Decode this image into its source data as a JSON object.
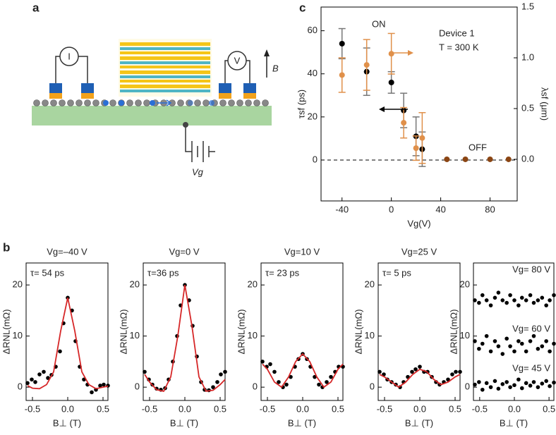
{
  "panels": {
    "a": "a",
    "b": "b",
    "c": "c"
  },
  "diagram": {
    "current_source": "I",
    "voltmeter": "V",
    "field": "B",
    "gate": "Vg"
  },
  "chart_data": [
    {
      "type": "scatter",
      "xlabel": "Vg(V)",
      "ylabel": "τsf (ps)",
      "y2label": "λsf (μm)",
      "xlim": [
        -57,
        102
      ],
      "ylim": [
        -19,
        71
      ],
      "y2lim": [
        -0.41,
        1.5
      ],
      "xticks": [
        -40,
        0,
        40,
        80
      ],
      "yticks": [
        0,
        20,
        40,
        60
      ],
      "y2ticks": [
        {
          "value": 0,
          "label": "0.0"
        },
        {
          "value": 0.5,
          "label": "0.5"
        },
        {
          "value": 1,
          "label": "1.0"
        },
        {
          "value": 1.5,
          "label": "1.5"
        }
      ],
      "zero_line": true,
      "annotations": [
        "ON",
        "OFF",
        "Device 1",
        "T = 300 K"
      ],
      "series": [
        {
          "color": "#000000",
          "x": [
            -40,
            -20,
            0,
            10,
            20,
            25
          ],
          "values": [
            54,
            41,
            36,
            23,
            11,
            5
          ],
          "errors": [
            7,
            11,
            5,
            8,
            9,
            8
          ]
        },
        {
          "color": "#e0904a",
          "axis": "y2",
          "x": [
            -40,
            -20,
            0,
            10,
            20,
            25
          ],
          "values": [
            0.83,
            0.93,
            1.04,
            0.36,
            0.11,
            0.21
          ],
          "errors": [
            0.17,
            0.25,
            0.2,
            0.15,
            0.12,
            0.25
          ]
        },
        {
          "color": "#8b4513",
          "axis": "y2",
          "x": [
            45,
            60,
            80,
            95
          ],
          "values": [
            0,
            0,
            0,
            0
          ]
        }
      ]
    },
    {
      "type": "line",
      "title": "Vg=–40 V",
      "note": "τ= 54 ps",
      "xlabel": "B⊥ (T)",
      "ylabel": "ΔRNL(mΩ)",
      "xlim": [
        -0.59,
        0.57
      ],
      "ylim": [
        -2.6,
        24.3
      ],
      "xticks": [
        -0.5,
        {
          "value": 0,
          "label": "0.0"
        },
        0.5
      ],
      "yticks": [
        0,
        10,
        20
      ],
      "series": [
        {
          "style": "dots",
          "color": "#000000",
          "x": [
            -0.57,
            -0.51,
            -0.46,
            -0.4,
            -0.34,
            -0.28,
            -0.23,
            -0.17,
            -0.11,
            -0.06,
            0,
            0.06,
            0.11,
            0.17,
            0.23,
            0.28,
            0.34,
            0.4,
            0.46,
            0.51,
            0.57
          ],
          "values": [
            0.8,
            1.5,
            1,
            2.5,
            3,
            1.8,
            2.4,
            4,
            7,
            12.5,
            17.5,
            15,
            9,
            4,
            1.5,
            0.5,
            -1,
            -0.5,
            0.3,
            0.5,
            0.3
          ]
        },
        {
          "style": "line",
          "color": "#d62728",
          "x": [
            -0.57,
            -0.5,
            -0.4,
            -0.3,
            -0.2,
            -0.1,
            0,
            0.1,
            0.2,
            0.3,
            0.4,
            0.5,
            0.57
          ],
          "values": [
            0.3,
            -0.2,
            -0.3,
            0.5,
            3,
            11,
            17.5,
            11,
            3,
            0.5,
            -0.3,
            0,
            0.2
          ]
        }
      ]
    },
    {
      "type": "line",
      "title": "Vg=0 V",
      "note": "τ=36 ps",
      "xlabel": "B⊥ (T)",
      "ylabel": "ΔRNL(mΩ)",
      "xlim": [
        -0.59,
        0.57
      ],
      "ylim": [
        -2.6,
        24.3
      ],
      "xticks": [
        -0.5,
        {
          "value": 0,
          "label": "0.0"
        },
        0.5
      ],
      "yticks": [
        0,
        10,
        20
      ],
      "series": [
        {
          "style": "dots",
          "color": "#000000",
          "x": [
            -0.57,
            -0.51,
            -0.46,
            -0.4,
            -0.34,
            -0.28,
            -0.23,
            -0.17,
            -0.11,
            -0.06,
            0,
            0.06,
            0.11,
            0.17,
            0.23,
            0.28,
            0.34,
            0.4,
            0.46,
            0.51,
            0.57
          ],
          "values": [
            3,
            1.5,
            0.5,
            -0.3,
            -0.5,
            -0.2,
            1.5,
            5,
            10,
            16,
            20,
            17,
            12,
            6,
            1,
            -0.5,
            -0.6,
            0,
            1,
            2.5,
            3
          ]
        },
        {
          "style": "line",
          "color": "#d62728",
          "x": [
            -0.57,
            -0.5,
            -0.4,
            -0.3,
            -0.2,
            -0.1,
            0,
            0.1,
            0.2,
            0.3,
            0.4,
            0.5,
            0.57
          ],
          "values": [
            2.5,
            1,
            -0.5,
            -0.8,
            2,
            10,
            20,
            12,
            2,
            -0.8,
            -0.6,
            0.5,
            1.5
          ]
        }
      ]
    },
    {
      "type": "line",
      "title": "Vg=10 V",
      "note": "τ= 23 ps",
      "xlabel": "B⊥ (T)",
      "ylabel": "ΔRNL(mΩ)",
      "xlim": [
        -0.59,
        0.57
      ],
      "ylim": [
        -2.6,
        24.3
      ],
      "xticks": [
        -0.5,
        {
          "value": 0,
          "label": "0.0"
        },
        0.5
      ],
      "yticks": [
        0,
        10,
        20
      ],
      "series": [
        {
          "style": "dots",
          "color": "#000000",
          "x": [
            -0.57,
            -0.51,
            -0.46,
            -0.4,
            -0.34,
            -0.28,
            -0.23,
            -0.17,
            -0.11,
            -0.06,
            0,
            0.06,
            0.11,
            0.17,
            0.23,
            0.28,
            0.34,
            0.4,
            0.46,
            0.51,
            0.57
          ],
          "values": [
            5,
            4,
            4.5,
            3,
            1,
            0,
            0.5,
            2,
            4,
            5.5,
            6.5,
            5.5,
            4,
            2,
            0.5,
            0,
            1,
            2,
            3,
            4,
            4
          ]
        },
        {
          "style": "line",
          "color": "#d62728",
          "x": [
            -0.57,
            -0.5,
            -0.4,
            -0.3,
            -0.2,
            -0.1,
            0,
            0.1,
            0.2,
            0.3,
            0.4,
            0.5,
            0.57
          ],
          "values": [
            4.5,
            3.5,
            1,
            0,
            2,
            5,
            6.5,
            5,
            2,
            0,
            1,
            3.5,
            4.5
          ]
        }
      ]
    },
    {
      "type": "line",
      "title": "Vg=25 V",
      "note": "τ= 5 ps",
      "xlabel": "B⊥ (T)",
      "ylabel": "ΔRNL(mΩ)",
      "xlim": [
        -0.59,
        0.57
      ],
      "ylim": [
        -2.6,
        24.3
      ],
      "xticks": [
        -0.5,
        {
          "value": 0,
          "label": "0.0"
        },
        0.5
      ],
      "yticks": [
        0,
        10,
        20
      ],
      "series": [
        {
          "style": "dots",
          "color": "#000000",
          "x": [
            -0.57,
            -0.51,
            -0.46,
            -0.4,
            -0.34,
            -0.28,
            -0.23,
            -0.17,
            -0.11,
            -0.06,
            0,
            0.06,
            0.11,
            0.17,
            0.23,
            0.28,
            0.34,
            0.4,
            0.46,
            0.51,
            0.57
          ],
          "values": [
            3,
            2.5,
            1.5,
            1,
            0.5,
            0,
            1,
            2,
            3,
            3.5,
            4,
            3,
            3,
            2,
            1,
            0.5,
            1,
            1.5,
            2.5,
            3,
            3
          ]
        },
        {
          "style": "line",
          "color": "#d62728",
          "x": [
            -0.57,
            -0.5,
            -0.4,
            -0.3,
            -0.2,
            -0.1,
            0,
            0.1,
            0.2,
            0.3,
            0.4,
            0.5,
            0.57
          ],
          "values": [
            2.5,
            2,
            1,
            0,
            1,
            2.5,
            3.5,
            3,
            1.5,
            0.5,
            1,
            2,
            2.5
          ]
        }
      ]
    },
    {
      "type": "line",
      "xlabel": "B⊥ (T)",
      "ylabel": "ΔRNL(mΩ)",
      "annotations": [
        "Vg= 80 V",
        "Vg= 60 V",
        "Vg= 45 V"
      ],
      "xlim": [
        -0.59,
        0.57
      ],
      "ylim": [
        -2.6,
        24.3
      ],
      "xticks": [
        -0.5,
        {
          "value": 0,
          "label": "0.0"
        },
        0.5
      ],
      "yticks": [
        0,
        10,
        20
      ],
      "series": [
        {
          "style": "dots",
          "color": "#000000",
          "x": [
            -0.57,
            -0.51,
            -0.46,
            -0.4,
            -0.34,
            -0.28,
            -0.23,
            -0.17,
            -0.11,
            -0.06,
            0,
            0.06,
            0.11,
            0.17,
            0.23,
            0.28,
            0.34,
            0.4,
            0.46,
            0.51,
            0.57
          ],
          "values": [
            17,
            16.5,
            18,
            17,
            16,
            17.5,
            18.5,
            17,
            16.5,
            18,
            17,
            16,
            17.5,
            17,
            18,
            16.5,
            17,
            17.5,
            16,
            17,
            18
          ]
        },
        {
          "style": "dots",
          "color": "#000000",
          "x": [
            -0.57,
            -0.51,
            -0.46,
            -0.4,
            -0.34,
            -0.28,
            -0.23,
            -0.17,
            -0.11,
            -0.06,
            0,
            0.06,
            0.11,
            0.17,
            0.23,
            0.28,
            0.34,
            0.4,
            0.46,
            0.51,
            0.57
          ],
          "values": [
            9,
            7.5,
            8.5,
            10,
            7,
            9,
            8,
            6.5,
            9.5,
            8,
            7,
            9,
            8.5,
            7,
            9,
            10,
            7.5,
            8,
            9,
            7,
            8.5
          ]
        },
        {
          "style": "dots",
          "color": "#000000",
          "x": [
            -0.57,
            -0.51,
            -0.46,
            -0.4,
            -0.34,
            -0.28,
            -0.23,
            -0.17,
            -0.11,
            -0.06,
            0,
            0.06,
            0.11,
            0.17,
            0.23,
            0.28,
            0.34,
            0.4,
            0.46,
            0.51,
            0.57
          ],
          "values": [
            0.5,
            1,
            -0.5,
            0.8,
            0,
            1.2,
            -0.3,
            0.6,
            1,
            0,
            0.4,
            1.5,
            -0.2,
            0.8,
            0.3,
            1,
            0,
            0.7,
            1.2,
            0.2,
            0.9
          ]
        }
      ]
    }
  ]
}
